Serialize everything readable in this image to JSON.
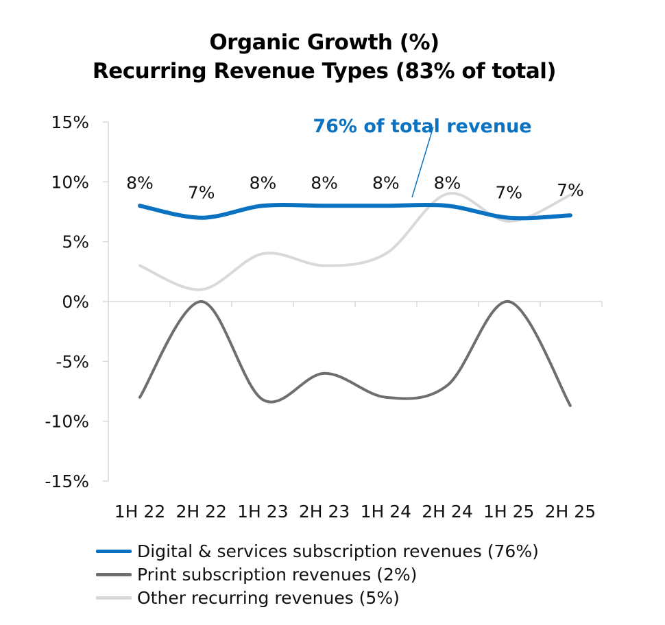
{
  "chart_data": {
    "type": "line",
    "title": "Organic Growth (%)",
    "subtitle": "Recurring Revenue Types (83% of total)",
    "categories": [
      "1H 22",
      "2H 22",
      "1H 23",
      "2H 23",
      "1H 24",
      "2H 24",
      "1H 25",
      "2H 25"
    ],
    "ylim": [
      -15,
      15
    ],
    "yticks": [
      15,
      10,
      5,
      0,
      -5,
      -10,
      -15
    ],
    "ytick_labels": [
      "15%",
      "10%",
      "5%",
      "0%",
      "-5%",
      "-10%",
      "-15%"
    ],
    "grid": false,
    "legend_position": "bottom-left",
    "annotation": "76% of total revenue",
    "series": [
      {
        "name": "Digital & services subscription revenues (76%)",
        "color": "#0b72c1",
        "values": [
          8,
          7,
          8,
          8,
          8,
          8,
          7,
          7.2
        ],
        "data_labels": [
          "8%",
          "7%",
          "8%",
          "8%",
          "8%",
          "8%",
          "7%",
          "7%"
        ]
      },
      {
        "name": "Print subscription revenues (2%)",
        "color": "#6e6e6e",
        "values": [
          -8,
          0,
          -8.2,
          -6,
          -8,
          -7,
          0,
          -8.7
        ]
      },
      {
        "name": "Other recurring revenues (5%)",
        "color": "#d9d9d9",
        "values": [
          3,
          1,
          4,
          3,
          4,
          9,
          6.7,
          8.9
        ]
      }
    ]
  }
}
